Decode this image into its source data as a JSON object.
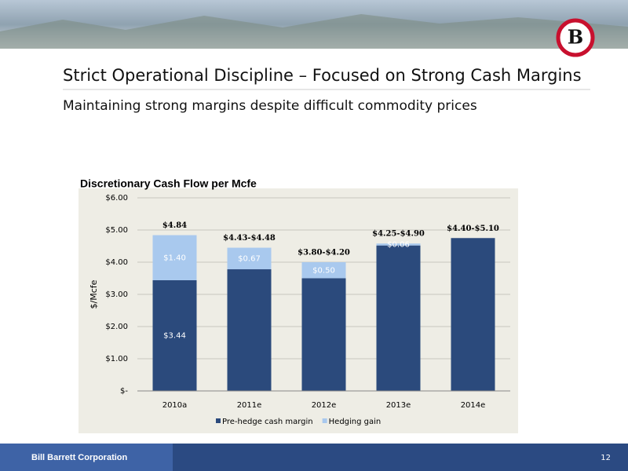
{
  "header": {
    "title": "Strict Operational Discipline – Focused on Strong Cash Margins",
    "subtitle": "Maintaining strong margins despite difficult commodity prices",
    "logo": "B"
  },
  "chart_data": {
    "type": "stacked_bar",
    "title": "Discretionary Cash Flow per Mcfe",
    "y_label": "$/Mcfe",
    "categories": [
      "2010a",
      "2011e",
      "2012e",
      "2013e",
      "2014e"
    ],
    "series": [
      {
        "name": "Pre-hedge cash margin",
        "color": "#2b4a7c",
        "values": [
          3.44,
          3.78,
          3.5,
          4.52,
          4.75
        ],
        "value_labels": [
          "$3.44",
          null,
          null,
          null,
          null
        ]
      },
      {
        "name": "Hedging gain",
        "color": "#a9c9ee",
        "values": [
          1.4,
          0.67,
          0.5,
          0.06,
          null
        ],
        "value_labels": [
          "$1.40",
          "$0.67",
          "$0.50",
          "$0.06",
          null
        ]
      }
    ],
    "total_labels": [
      "$4.84",
      "$4.43-$4.48",
      "$3.80-$4.20",
      "$4.25-$4.90",
      "$4.40-$5.10"
    ],
    "ylim": [
      0,
      6
    ],
    "yticks": [
      {
        "value": 0,
        "label": "$-"
      },
      {
        "value": 1,
        "label": "$1.00"
      },
      {
        "value": 2,
        "label": "$2.00"
      },
      {
        "value": 3,
        "label": "$3.00"
      },
      {
        "value": 4,
        "label": "$4.00"
      },
      {
        "value": 5,
        "label": "$5.00"
      },
      {
        "value": 6,
        "label": "$6.00"
      }
    ],
    "grid": true,
    "legend": "bottom"
  },
  "footer": {
    "company": "Bill Barrett Corporation",
    "page": "12"
  }
}
